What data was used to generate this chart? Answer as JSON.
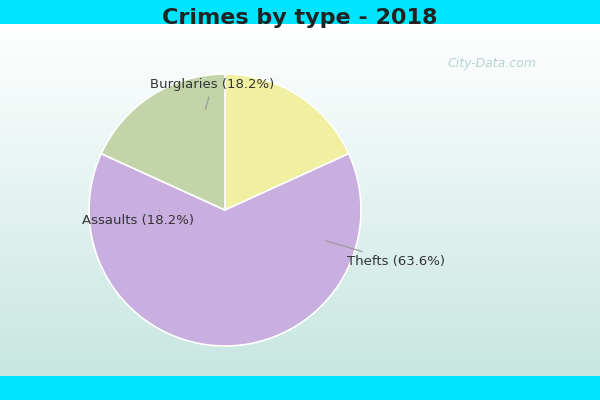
{
  "title": "Crimes by type - 2018",
  "slices": [
    {
      "label": "Burglaries (18.2%)",
      "value": 18.2,
      "color": "#f0f0a0"
    },
    {
      "label": "Thefts (63.6%)",
      "value": 63.6,
      "color": "#c9aee0"
    },
    {
      "label": "Assaults (18.2%)",
      "value": 18.2,
      "color": "#c2d4a8"
    }
  ],
  "background_top": "#00e5ff",
  "background_gradient_start": "#c8ece6",
  "background_gradient_end": "#e8f5f2",
  "title_fontsize": 16,
  "label_fontsize": 9.5,
  "watermark_text": "City-Data.com",
  "startangle": 90,
  "label_color": "#333333",
  "line_color": "#999999",
  "title_color": "#222222"
}
